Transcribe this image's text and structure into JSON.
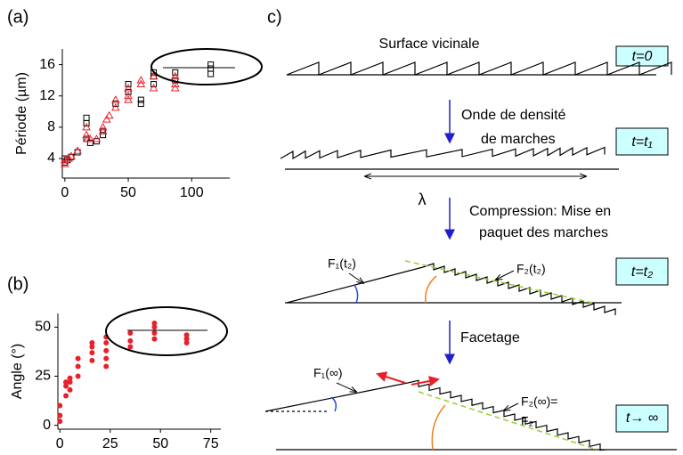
{
  "chart_data": [
    {
      "type": "scatter",
      "title": "(a)",
      "ylabel": "Période (µm)",
      "xlim": [
        -2,
        130
      ],
      "ylim": [
        1.5,
        18
      ],
      "xticks": [
        0,
        50,
        100
      ],
      "yticks": [
        4,
        8,
        12,
        16
      ],
      "series": [
        {
          "marker": "square",
          "color": "#000000",
          "x": [
            0,
            0,
            2,
            5,
            10,
            17,
            17,
            17,
            20,
            25,
            30,
            30,
            40,
            50,
            50,
            60,
            60,
            70,
            70,
            70,
            87,
            87,
            115,
            115,
            115
          ],
          "values": [
            3.5,
            4,
            3.8,
            4.2,
            4.8,
            8.5,
            9.2,
            6.5,
            6,
            6.2,
            7.5,
            7,
            11,
            13.5,
            12.5,
            11,
            11.5,
            15,
            14.5,
            13.5,
            15,
            14,
            15.5,
            16,
            14.8
          ]
        },
        {
          "marker": "triangle",
          "color": "#e8202a",
          "x": [
            0,
            0,
            3,
            5,
            10,
            17,
            17,
            18,
            20,
            25,
            30,
            30,
            33,
            35,
            40,
            40,
            50,
            50,
            50,
            60,
            60,
            70,
            70,
            87,
            87,
            87
          ],
          "values": [
            3.3,
            3.8,
            4,
            4.3,
            5,
            8,
            7,
            6.5,
            6.5,
            6.5,
            8,
            7.5,
            9,
            9.5,
            11.5,
            10.5,
            11.5,
            12,
            13,
            13.5,
            14,
            14.5,
            13,
            14.5,
            13.5,
            13
          ]
        }
      ]
    },
    {
      "type": "scatter",
      "title": "(b)",
      "ylabel": "Angle (°)",
      "xlim": [
        -1,
        80
      ],
      "ylim": [
        -2,
        57
      ],
      "xticks": [
        0,
        25,
        50,
        75
      ],
      "yticks": [
        0,
        25,
        50
      ],
      "series": [
        {
          "marker": "circle",
          "color": "#e8202a",
          "x": [
            0,
            0,
            0,
            3,
            3,
            3,
            5,
            5,
            5,
            9,
            9,
            9,
            16,
            16,
            16,
            16,
            23,
            23,
            23,
            23,
            23,
            35,
            35,
            35,
            47,
            47,
            47,
            47,
            63,
            63,
            63
          ],
          "values": [
            2,
            5,
            10,
            15,
            20,
            22,
            18,
            22,
            24,
            25,
            30,
            34,
            33,
            37,
            40,
            42,
            30,
            34,
            38,
            42,
            45,
            40,
            43,
            47,
            44,
            47,
            50,
            52,
            42,
            44,
            46
          ]
        }
      ]
    }
  ],
  "diagram": {
    "label": "c)",
    "surface": "Surface vicinale",
    "t0": "t=0",
    "wave": [
      "Onde de densité",
      "de marches"
    ],
    "t1": "t=t₁",
    "lambda": "λ",
    "compression": [
      "Compression: Mise en",
      "paquet des marches"
    ],
    "t2": "t=t₂",
    "f1t2": "F₁(t₂)",
    "f2t2": "F₂(t₂)",
    "facetage": "Facetage",
    "f1inf": "F₁(∞)",
    "f2inf": [
      "F₂(∞)=",
      "F₂"
    ],
    "tinf": "t→ ∞"
  }
}
